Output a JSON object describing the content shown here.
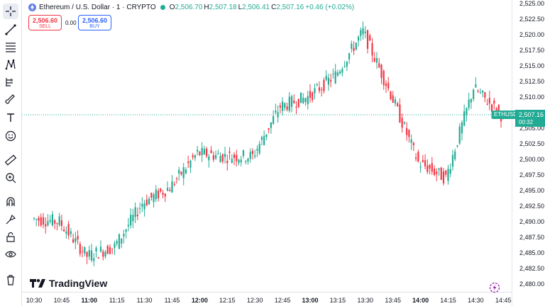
{
  "legend": {
    "title": "Ethereum / U.S. Dollar · 1 · CRYPTO",
    "open_key": "O",
    "open": "2,506.70",
    "high_key": "H",
    "high": "2,507.18",
    "low_key": "L",
    "low": "2,506.41",
    "close_key": "C",
    "close": "2,507.16",
    "change": "+0.46 (+0.02%)"
  },
  "trade": {
    "sell_price": "2,506.60",
    "sell_label": "SELL",
    "spread": "0.00",
    "buy_price": "2,506.60",
    "buy_label": "BUY"
  },
  "price_axis": [
    "2,525.00",
    "2,522.50",
    "2,520.00",
    "2,517.50",
    "2,515.00",
    "2,512.50",
    "2,510.00",
    "2,507.50",
    "2,505.00",
    "2,502.50",
    "2,500.00",
    "2,497.50",
    "2,495.00",
    "2,492.50",
    "2,490.00",
    "2,487.50",
    "2,485.00",
    "2,482.50",
    "2,480.00"
  ],
  "time_axis": [
    {
      "label": "10:30",
      "bold": false
    },
    {
      "label": "10:45",
      "bold": false
    },
    {
      "label": "11:00",
      "bold": true
    },
    {
      "label": "11:15",
      "bold": false
    },
    {
      "label": "11:30",
      "bold": false
    },
    {
      "label": "11:45",
      "bold": false
    },
    {
      "label": "12:00",
      "bold": true
    },
    {
      "label": "12:15",
      "bold": false
    },
    {
      "label": "12:30",
      "bold": false
    },
    {
      "label": "12:45",
      "bold": false
    },
    {
      "label": "13:00",
      "bold": true
    },
    {
      "label": "13:15",
      "bold": false
    },
    {
      "label": "13:30",
      "bold": false
    },
    {
      "label": "13:45",
      "bold": false
    },
    {
      "label": "14:00",
      "bold": true
    },
    {
      "label": "14:15",
      "bold": false
    },
    {
      "label": "14:30",
      "bold": false
    },
    {
      "label": "14:45",
      "bold": false
    }
  ],
  "current": {
    "symbol": "ETHUSD",
    "price": "2,507.16",
    "countdown": "00:32"
  },
  "branding": {
    "name": "TradingView"
  },
  "colors": {
    "up": "#22ab94",
    "down": "#f23645",
    "accent": "#2962ff"
  },
  "toolbar_icons": [
    "crosshair-icon",
    "trend-line-icon",
    "fib-retracement-icon",
    "pattern-icon",
    "forecast-icon",
    "brush-icon",
    "text-icon",
    "emoji-icon",
    "ruler-icon",
    "zoom-in-icon",
    "magnet-icon",
    "lock-drawings-icon",
    "lock-icon",
    "eye-icon",
    "trash-icon"
  ],
  "chart_data": {
    "type": "candlestick",
    "symbol": "ETHUSD",
    "interval": "1 minute",
    "ylim": [
      2480.0,
      2525.0
    ],
    "x_range": [
      "10:30",
      "14:45"
    ],
    "key_points": [
      {
        "time": "10:30",
        "close": 2490.5
      },
      {
        "time": "10:45",
        "close": 2490.0
      },
      {
        "time": "11:00",
        "close": 2484.5
      },
      {
        "time": "11:15",
        "close": 2486.0
      },
      {
        "time": "11:30",
        "close": 2493.0
      },
      {
        "time": "11:45",
        "close": 2495.5
      },
      {
        "time": "12:00",
        "close": 2501.0
      },
      {
        "time": "12:15",
        "close": 2500.5
      },
      {
        "time": "12:30",
        "close": 2500.5
      },
      {
        "time": "12:45",
        "close": 2508.5
      },
      {
        "time": "13:00",
        "close": 2510.0
      },
      {
        "time": "13:15",
        "close": 2513.5
      },
      {
        "time": "13:30",
        "close": 2520.5
      },
      {
        "time": "13:45",
        "close": 2510.5
      },
      {
        "time": "14:00",
        "close": 2499.5
      },
      {
        "time": "14:15",
        "close": 2497.0
      },
      {
        "time": "14:30",
        "close": 2511.5
      },
      {
        "time": "14:45",
        "close": 2507.16
      }
    ]
  }
}
